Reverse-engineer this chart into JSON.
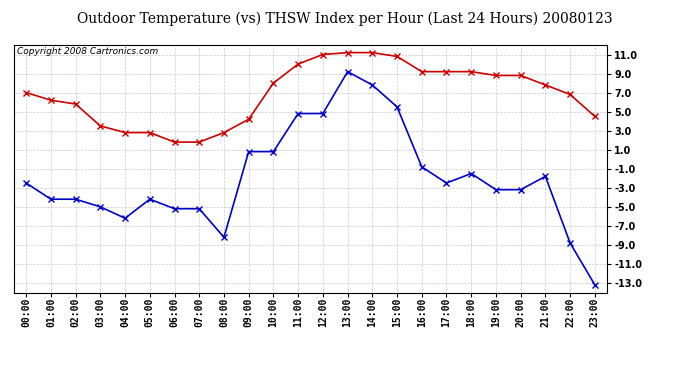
{
  "title": "Outdoor Temperature (vs) THSW Index per Hour (Last 24 Hours) 20080123",
  "copyright": "Copyright 2008 Cartronics.com",
  "hours": [
    "00:00",
    "01:00",
    "02:00",
    "03:00",
    "04:00",
    "05:00",
    "06:00",
    "07:00",
    "08:00",
    "09:00",
    "10:00",
    "11:00",
    "12:00",
    "13:00",
    "14:00",
    "15:00",
    "16:00",
    "17:00",
    "18:00",
    "19:00",
    "20:00",
    "21:00",
    "22:00",
    "23:00"
  ],
  "red_data": [
    7.0,
    6.2,
    5.8,
    3.5,
    2.8,
    2.8,
    1.8,
    1.8,
    2.8,
    4.2,
    8.0,
    10.0,
    11.0,
    11.2,
    11.2,
    10.8,
    9.2,
    9.2,
    9.2,
    8.8,
    8.8,
    7.8,
    6.8,
    4.5
  ],
  "blue_data": [
    -2.5,
    -4.2,
    -4.2,
    -5.0,
    -6.2,
    -4.2,
    -5.2,
    -5.2,
    -8.2,
    0.8,
    0.8,
    4.8,
    4.8,
    9.2,
    7.8,
    5.5,
    -0.8,
    -2.5,
    -1.5,
    -3.2,
    -3.2,
    -1.8,
    -8.8,
    -13.2
  ],
  "ylim": [
    -14.0,
    12.0
  ],
  "yticks": [
    -13.0,
    -11.0,
    -9.0,
    -7.0,
    -5.0,
    -3.0,
    -1.0,
    1.0,
    3.0,
    5.0,
    7.0,
    9.0,
    11.0
  ],
  "red_color": "#cc0000",
  "blue_color": "#0000cc",
  "bg_color": "#ffffff",
  "grid_color": "#bbbbbb",
  "title_fontsize": 10,
  "copyright_fontsize": 6.5,
  "tick_fontsize": 7
}
